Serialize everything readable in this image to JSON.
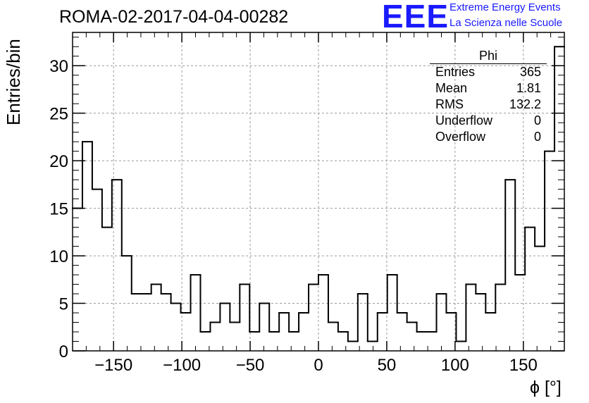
{
  "title": "ROMA-02-2017-04-04-00282",
  "logo": {
    "mark": "EEE",
    "line1": "Extreme Energy Events",
    "line2": "La Scienza nelle Scuole",
    "color": "#1a1aff"
  },
  "stats": {
    "name": "Phi",
    "rows": [
      {
        "label": "Entries",
        "value": "365"
      },
      {
        "label": "Mean",
        "value": "1.81"
      },
      {
        "label": "RMS",
        "value": "132.2"
      },
      {
        "label": "Underflow",
        "value": "0"
      },
      {
        "label": "Overflow",
        "value": "0"
      }
    ]
  },
  "chart_data": {
    "type": "bar",
    "histogram_style": "step",
    "title": "ROMA-02-2017-04-04-00282",
    "xlabel": "ϕ [°]",
    "ylabel": "Entries/bin",
    "xlim": [
      -180,
      180
    ],
    "ylim": [
      0,
      33.5
    ],
    "bin_width": 7.2,
    "xticks": [
      -150,
      -100,
      -50,
      0,
      50,
      100,
      150
    ],
    "yticks": [
      0,
      5,
      10,
      15,
      20,
      25,
      30
    ],
    "grid": true,
    "line_color": "#000000",
    "bin_edges": [
      -180,
      -172.8,
      -165.6,
      -158.4,
      -151.2,
      -144,
      -136.8,
      -129.6,
      -122.4,
      -115.2,
      -108,
      -100.8,
      -93.6,
      -86.4,
      -79.2,
      -72,
      -64.8,
      -57.6,
      -50.4,
      -43.2,
      -36,
      -28.8,
      -21.6,
      -14.4,
      -7.2,
      0,
      7.2,
      14.4,
      21.6,
      28.8,
      36,
      43.2,
      50.4,
      57.6,
      64.8,
      72,
      79.2,
      86.4,
      93.6,
      100.8,
      108,
      115.2,
      122.4,
      129.6,
      136.8,
      144,
      151.2,
      158.4,
      165.6,
      172.8,
      180
    ],
    "values": [
      15,
      22,
      17,
      13,
      18,
      10,
      6,
      6,
      7,
      6,
      5,
      4,
      8,
      2,
      3,
      5,
      3,
      7,
      2,
      5,
      2,
      4,
      2,
      4,
      7,
      8,
      3,
      2,
      1,
      6,
      1,
      4,
      8,
      4,
      3,
      2,
      2,
      6,
      4,
      1,
      7,
      6,
      4,
      7,
      18,
      8,
      13,
      11,
      21,
      32
    ]
  }
}
